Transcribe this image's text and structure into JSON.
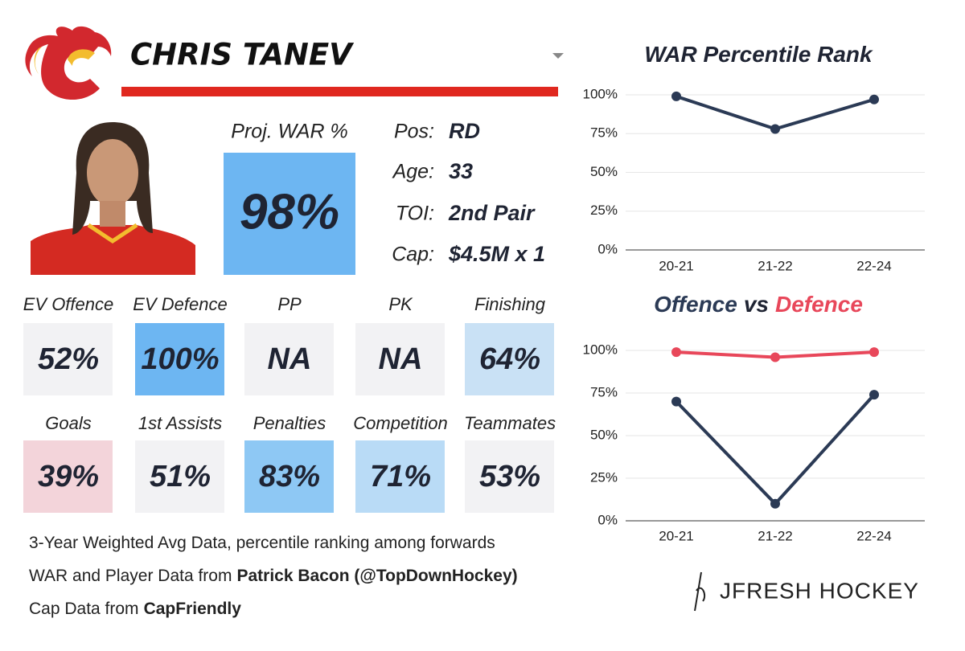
{
  "header": {
    "name": "CHRIS TANEV"
  },
  "proj_war": {
    "label": "Proj. WAR %",
    "value": "98%",
    "color": "#6db6f2"
  },
  "info": [
    {
      "label": "Pos:",
      "value": "RD"
    },
    {
      "label": "Age:",
      "value": "33"
    },
    {
      "label": "TOI:",
      "value": "2nd Pair"
    },
    {
      "label": "Cap:",
      "value": "$4.5M x 1"
    }
  ],
  "stats": [
    {
      "label": "EV Offence",
      "value": "52%",
      "color": "#f2f2f4"
    },
    {
      "label": "EV Defence",
      "value": "100%",
      "color": "#6db6f2"
    },
    {
      "label": "PP",
      "value": "NA",
      "color": "#f2f2f4"
    },
    {
      "label": "PK",
      "value": "NA",
      "color": "#f2f2f4"
    },
    {
      "label": "Finishing",
      "value": "64%",
      "color": "#c9e1f5"
    },
    {
      "label": "Goals",
      "value": "39%",
      "color": "#f3d4da"
    },
    {
      "label": "1st Assists",
      "value": "51%",
      "color": "#f2f2f4"
    },
    {
      "label": "Penalties",
      "value": "83%",
      "color": "#8ec8f4"
    },
    {
      "label": "Competition",
      "value": "71%",
      "color": "#b9dbf6"
    },
    {
      "label": "Teammates",
      "value": "53%",
      "color": "#f2f2f4"
    }
  ],
  "notes": [
    {
      "text": "3-Year Weighted Avg Data, percentile ranking among forwards"
    },
    {
      "text": "WAR and Player Data from",
      "source": "Patrick Bacon (@TopDownHockey)"
    },
    {
      "text": "Cap Data from",
      "source": "CapFriendly"
    }
  ],
  "brand": "JFRESH HOCKEY",
  "chart_data": [
    {
      "type": "line",
      "title": [
        "WAR Percentile Rank"
      ],
      "categories": [
        "20-21",
        "21-22",
        "22-24"
      ],
      "series": [
        {
          "name": "WAR",
          "color": "#2b3a55",
          "values": [
            99,
            78,
            97
          ]
        }
      ],
      "ylim": [
        0,
        100
      ],
      "yticks": [
        {
          "value": 0,
          "label": "0%"
        },
        {
          "value": 25,
          "label": "25%"
        },
        {
          "value": 50,
          "label": "50%"
        },
        {
          "value": 75,
          "label": "75%"
        },
        {
          "value": 100,
          "label": "100%"
        }
      ],
      "grid": true
    },
    {
      "type": "line",
      "title": [
        "Offence",
        "vs",
        "Defence"
      ],
      "categories": [
        "20-21",
        "21-22",
        "22-24"
      ],
      "series": [
        {
          "name": "Offence",
          "color": "#2b3a55",
          "values": [
            70,
            10,
            74
          ]
        },
        {
          "name": "Defence",
          "color": "#e8475a",
          "values": [
            99,
            96,
            99
          ]
        }
      ],
      "ylim": [
        0,
        100
      ],
      "yticks": [
        {
          "value": 0,
          "label": "0%"
        },
        {
          "value": 25,
          "label": "25%"
        },
        {
          "value": 50,
          "label": "50%"
        },
        {
          "value": 75,
          "label": "75%"
        },
        {
          "value": 100,
          "label": "100%"
        }
      ],
      "grid": true
    }
  ]
}
